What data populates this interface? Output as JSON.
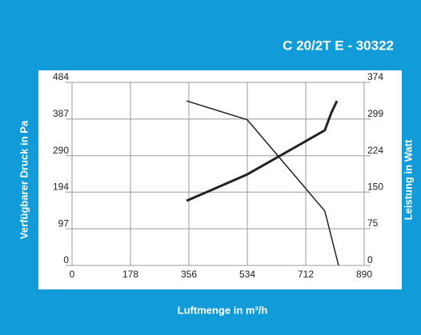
{
  "chart_data": {
    "type": "line",
    "title": "C 20/2T E - 30322",
    "x_label": "Luftmenge in m³/h",
    "y_label": "Verfügbarer Druck in Pa",
    "y2_label": "Leistung in Watt",
    "xlim": [
      0,
      890
    ],
    "xticks": [
      0,
      178,
      356,
      534,
      712,
      890
    ],
    "ylim": [
      0,
      484
    ],
    "yticks": [
      0,
      97,
      194,
      290,
      387,
      484
    ],
    "y2lim": [
      0,
      374
    ],
    "y2ticks": [
      0,
      75,
      150,
      224,
      299,
      374
    ],
    "grid": true,
    "series": [
      {
        "color": "#222222",
        "x": [
          349,
          534,
          770,
          812
        ],
        "values": [
          435,
          385,
          144,
          0
        ]
      },
      {
        "color": "#222222",
        "axis": "y2",
        "x": [
          349,
          534,
          770,
          790,
          807
        ],
        "values": [
          132,
          186,
          276,
          312,
          336
        ]
      }
    ]
  }
}
